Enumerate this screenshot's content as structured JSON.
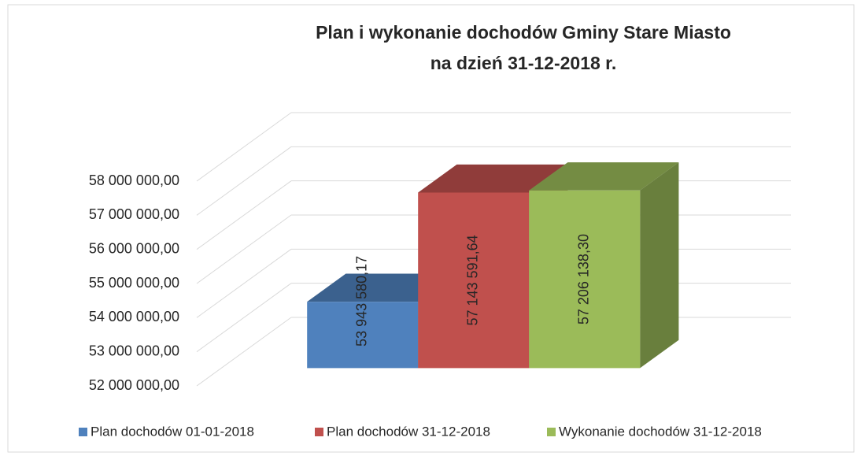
{
  "chart_data": {
    "type": "bar",
    "title": [
      "Plan i wykonanie dochodów Gminy Stare Miasto",
      "na dzień 31-12-2018 r."
    ],
    "series": [
      {
        "name": "Plan dochodów 01-01-2018",
        "color": "#4f81bd",
        "values": [
          53943580.17
        ],
        "value_labels": [
          "53 943 580,17"
        ]
      },
      {
        "name": "Plan dochodów 31-12-2018",
        "color": "#c0504d",
        "values": [
          57143591.64
        ],
        "value_labels": [
          "57 143 591,64"
        ]
      },
      {
        "name": "Wykonanie dochodów 31-12-2018",
        "color": "#9bbb59",
        "values": [
          57206138.3
        ],
        "value_labels": [
          "57 206 138,30"
        ]
      }
    ],
    "ylim": [
      52000000,
      58000000
    ],
    "yticks": [
      {
        "value": 52000000,
        "label": "52 000 000,00"
      },
      {
        "value": 53000000,
        "label": "53 000 000,00"
      },
      {
        "value": 54000000,
        "label": "54 000 000,00"
      },
      {
        "value": 55000000,
        "label": "55 000 000,00"
      },
      {
        "value": 56000000,
        "label": "56 000 000,00"
      },
      {
        "value": 57000000,
        "label": "57 000 000,00"
      },
      {
        "value": 58000000,
        "label": "58 000 000,00"
      }
    ],
    "grid": true,
    "legend": "bottom"
  }
}
